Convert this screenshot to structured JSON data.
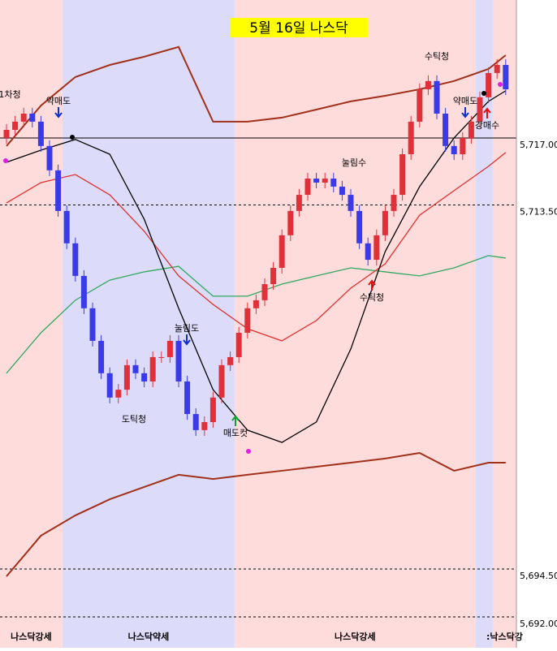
{
  "chart_data": {
    "type": "candlestick",
    "title": "5월 16일 나스닥",
    "ylim": [
      5690.73,
      5724.2
    ],
    "yticks": [
      {
        "value": 5717,
        "label": "5,717.00"
      },
      {
        "value": 5713.5,
        "label": "5,713.50"
      },
      {
        "value": 5694.5,
        "label": "5,694.50"
      },
      {
        "value": 5692,
        "label": "5,692.00"
      }
    ],
    "up_color": "#e0303a",
    "down_color": "#3a3ae8",
    "open": [
      5717.0,
      5717.42,
      5717.85,
      5718.27,
      5717.85,
      5716.58,
      5715.31,
      5713.19,
      5711.5,
      5709.8,
      5708.11,
      5706.41,
      5704.72,
      5703.45,
      5703.86,
      5705.14,
      5704.72,
      5704.29,
      5705.56,
      5705.56,
      5706.41,
      5704.29,
      5702.59,
      5701.75,
      5702.17,
      5703.45,
      5705.14,
      5705.56,
      5706.83,
      5708.11,
      5708.53,
      5709.37,
      5710.22,
      5711.92,
      5713.19,
      5714.03,
      5714.88,
      5714.67,
      5714.88,
      5714.46,
      5714.03,
      5713.19,
      5711.5,
      5710.64,
      5711.92,
      5713.19,
      5714.03,
      5716.15,
      5717.85,
      5719.54,
      5719.97,
      5718.27,
      5716.58,
      5716.15,
      5717.0,
      5717.85,
      5719.12,
      5720.39,
      5720.81
    ],
    "high": [
      5717.72,
      5718.15,
      5718.57,
      5718.57,
      5718.15,
      5716.88,
      5715.61,
      5713.49,
      5711.8,
      5710.1,
      5708.41,
      5706.71,
      5705.02,
      5704.16,
      5705.44,
      5705.44,
      5705.02,
      5705.86,
      5705.86,
      5706.71,
      5706.71,
      5704.59,
      5702.89,
      5702.47,
      5703.75,
      5705.44,
      5705.86,
      5707.13,
      5708.41,
      5708.83,
      5709.67,
      5710.52,
      5712.22,
      5713.49,
      5714.33,
      5715.18,
      5715.18,
      5715.18,
      5715.18,
      5714.76,
      5714.33,
      5713.49,
      5711.8,
      5712.22,
      5713.49,
      5714.33,
      5716.45,
      5718.15,
      5719.84,
      5720.27,
      5720.27,
      5718.57,
      5716.88,
      5717.3,
      5718.15,
      5719.42,
      5720.69,
      5721.11,
      5721.11
    ],
    "low": [
      5716.7,
      5717.12,
      5717.55,
      5717.55,
      5716.28,
      5715.01,
      5712.89,
      5711.2,
      5709.5,
      5707.81,
      5706.11,
      5704.42,
      5703.15,
      5703.15,
      5703.56,
      5704.42,
      5703.99,
      5703.99,
      5705.26,
      5705.26,
      5703.99,
      5702.29,
      5701.45,
      5701.45,
      5701.87,
      5703.15,
      5704.84,
      5705.26,
      5706.53,
      5707.81,
      5708.23,
      5709.07,
      5709.92,
      5711.62,
      5712.89,
      5713.73,
      5714.37,
      5714.37,
      5714.16,
      5713.73,
      5712.89,
      5711.2,
      5710.34,
      5710.34,
      5711.62,
      5712.89,
      5713.73,
      5715.85,
      5717.55,
      5719.24,
      5717.97,
      5716.28,
      5715.85,
      5715.85,
      5716.7,
      5717.55,
      5718.82,
      5720.09,
      5719.24
    ],
    "close": [
      5717.42,
      5717.85,
      5718.27,
      5717.85,
      5716.58,
      5715.31,
      5713.19,
      5711.5,
      5709.8,
      5708.11,
      5706.41,
      5704.72,
      5703.45,
      5703.86,
      5705.14,
      5704.72,
      5704.29,
      5705.56,
      5705.56,
      5706.41,
      5704.29,
      5702.59,
      5701.75,
      5702.17,
      5703.45,
      5705.14,
      5705.56,
      5706.83,
      5708.11,
      5708.53,
      5709.37,
      5710.22,
      5711.92,
      5713.19,
      5714.03,
      5714.88,
      5714.67,
      5714.88,
      5714.46,
      5714.03,
      5713.19,
      5711.5,
      5710.64,
      5711.92,
      5713.19,
      5714.03,
      5716.15,
      5717.85,
      5719.54,
      5719.97,
      5718.27,
      5716.58,
      5716.15,
      5717.0,
      5717.85,
      5719.12,
      5720.39,
      5720.81,
      5719.54
    ],
    "line_x": [
      0,
      4,
      8,
      12,
      16,
      20,
      24,
      28,
      32,
      36,
      40,
      44,
      48,
      52,
      56,
      58
    ],
    "lines": [
      {
        "color": "#a0301a",
        "values": [
          5716.58,
          5718.69,
          5720.18,
          5720.81,
          5721.24,
          5721.75,
          5717.85,
          5717.85,
          5718.06,
          5718.48,
          5718.91,
          5719.2,
          5719.54,
          5719.97,
          5720.6,
          5721.32
        ]
      },
      {
        "color": "#a0301a",
        "values": [
          5694.12,
          5696.24,
          5697.3,
          5698.14,
          5698.78,
          5699.42,
          5699.2,
          5699.42,
          5699.63,
          5699.84,
          5700.05,
          5700.27,
          5700.56,
          5699.63,
          5700.05,
          5700.05
        ]
      },
      {
        "color": "#30a860",
        "values": [
          5704.72,
          5706.83,
          5708.53,
          5709.58,
          5710.01,
          5710.3,
          5708.74,
          5708.74,
          5709.37,
          5709.8,
          5710.22,
          5710.01,
          5709.8,
          5710.22,
          5710.86,
          5710.73
        ]
      },
      {
        "color": "#e03030",
        "values": [
          5713.61,
          5714.67,
          5715.09,
          5714.03,
          5712.13,
          5709.8,
          5708.31,
          5707.04,
          5706.41,
          5707.47,
          5709.16,
          5710.43,
          5712.97,
          5714.25,
          5715.52,
          5716.24
        ]
      },
      {
        "color": "#000000",
        "values": [
          5715.73,
          5716.36,
          5716.92,
          5716.15,
          5712.76,
          5708.11,
          5703.86,
          5701.75,
          5701.11,
          5702.17,
          5705.98,
          5711.07,
          5714.46,
          5717.0,
          5718.91,
          5719.46
        ]
      }
    ],
    "regimes": [
      {
        "label": "나스닥강세",
        "from": 0,
        "to": 6,
        "color": "#ffdcdc"
      },
      {
        "label": "나스닥약세",
        "from": 7,
        "to": 26,
        "color": "#dcdcfa"
      },
      {
        "label": "나스닥강세",
        "from": 27,
        "to": 54,
        "color": "#ffdcdc"
      },
      {
        "label": "",
        "from": 55,
        "to": 56,
        "color": "#dcdcfa"
      },
      {
        "label": ":낙스닥강",
        "from": 57,
        "to": 58,
        "color": "#ffdcdc"
      }
    ],
    "annotations": [
      "1차청",
      "약매도",
      "눌림도",
      "도틱청",
      "매도컷",
      "수틱청",
      "눌림수",
      "수틱청",
      "약매도",
      "강매수"
    ]
  }
}
